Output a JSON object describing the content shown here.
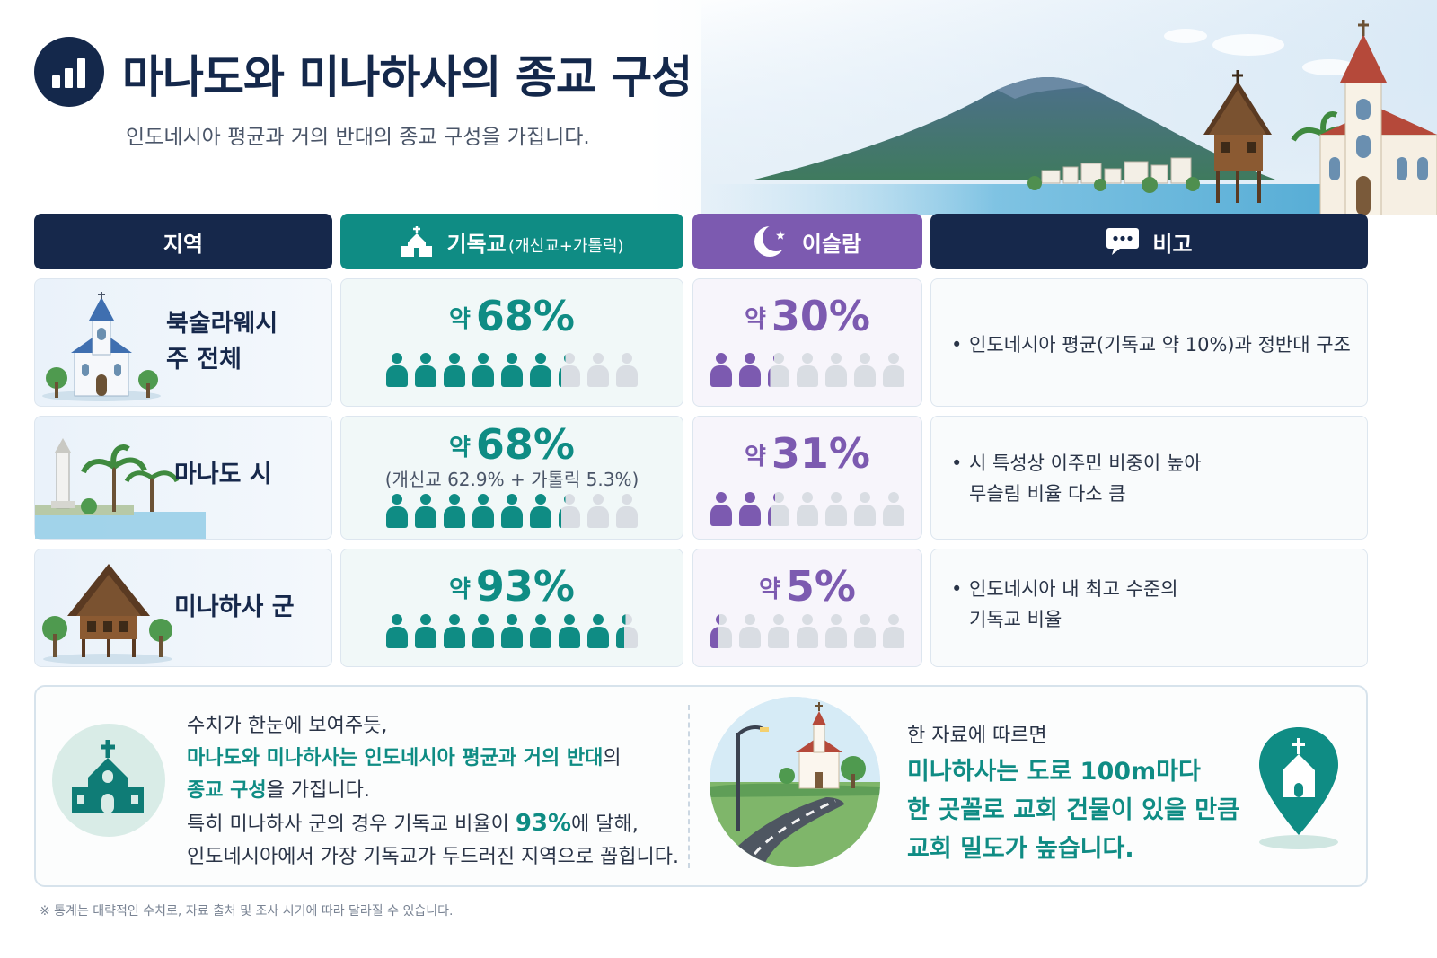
{
  "header": {
    "title": "마나도와 미나하사의 종교 구성",
    "subtitle": "인도네시아 평균과 거의 반대의 종교 구성을 가집니다.",
    "title_icon": "bar-chart-icon"
  },
  "table": {
    "columns": {
      "region": "지역",
      "christian": "기독교",
      "christian_sub": "(개신교+가톨릭)",
      "islam": "이슬람",
      "note": "비고"
    },
    "rows": [
      {
        "region_line1": "북술라웨시",
        "region_line2": "주 전체",
        "christian_prefix": "약",
        "christian_pct": "68%",
        "christian_breakdown": "",
        "christian_share": 0.68,
        "islam_prefix": "약",
        "islam_pct": "30%",
        "islam_share": 0.3,
        "note_line1": "인도네시아 평균(기독교 약 10%)과 정반대 구조",
        "note_line2": "",
        "region_icon": "church-icon"
      },
      {
        "region_line1": "마나도 시",
        "region_line2": "",
        "christian_prefix": "약",
        "christian_pct": "68%",
        "christian_breakdown": "(개신교 62.9% + 가톨릭 5.3%)",
        "christian_share": 0.68,
        "islam_prefix": "약",
        "islam_pct": "31%",
        "islam_share": 0.31,
        "note_line1": "시 특성상 이주민 비중이 높아",
        "note_line2": "무슬림 비율 다소 큼",
        "region_icon": "lighthouse-palm-icon"
      },
      {
        "region_line1": "미나하사 군",
        "region_line2": "",
        "christian_prefix": "약",
        "christian_pct": "93%",
        "christian_breakdown": "",
        "christian_share": 0.93,
        "islam_prefix": "약",
        "islam_pct": "5%",
        "islam_share": 0.05,
        "note_line1": "인도네시아 내 최고 수준의",
        "note_line2": "기독교 비율",
        "region_icon": "traditional-house-icon"
      }
    ]
  },
  "bottom": {
    "left_l1": "수치가 한눈에 보여주듯,",
    "left_l2_hl": "마나도와 미나하사는 인도네시아 평균과 거의 반대",
    "left_l2_rest": "의",
    "left_l3_hl": "종교 구성",
    "left_l3_rest": "을 가집니다.",
    "left_l4_pre": "특히 미나하사 군의 경우 기독교 비율이 ",
    "left_l4_num": "93%",
    "left_l4_post": "에 달해,",
    "left_l5": "인도네시아에서 가장 기독교가 두드러진 지역으로 꼽힙니다.",
    "right_intro": "한 자료에 따르면",
    "right_l1": "미나하사는 도로 100m마다",
    "right_l2": "한 곳꼴로 교회 건물이 있을 만큼",
    "right_l3": "교회 밀도가 높습니다."
  },
  "footnote": "※ 통계는 대략적인 수치로, 자료 출처 및 조사 시기에 따라 달라질 수 있습니다.",
  "colors": {
    "navy": "#16284b",
    "teal": "#0f8c84",
    "purple": "#7c5ab0",
    "person_empty": "#d9dde3"
  }
}
